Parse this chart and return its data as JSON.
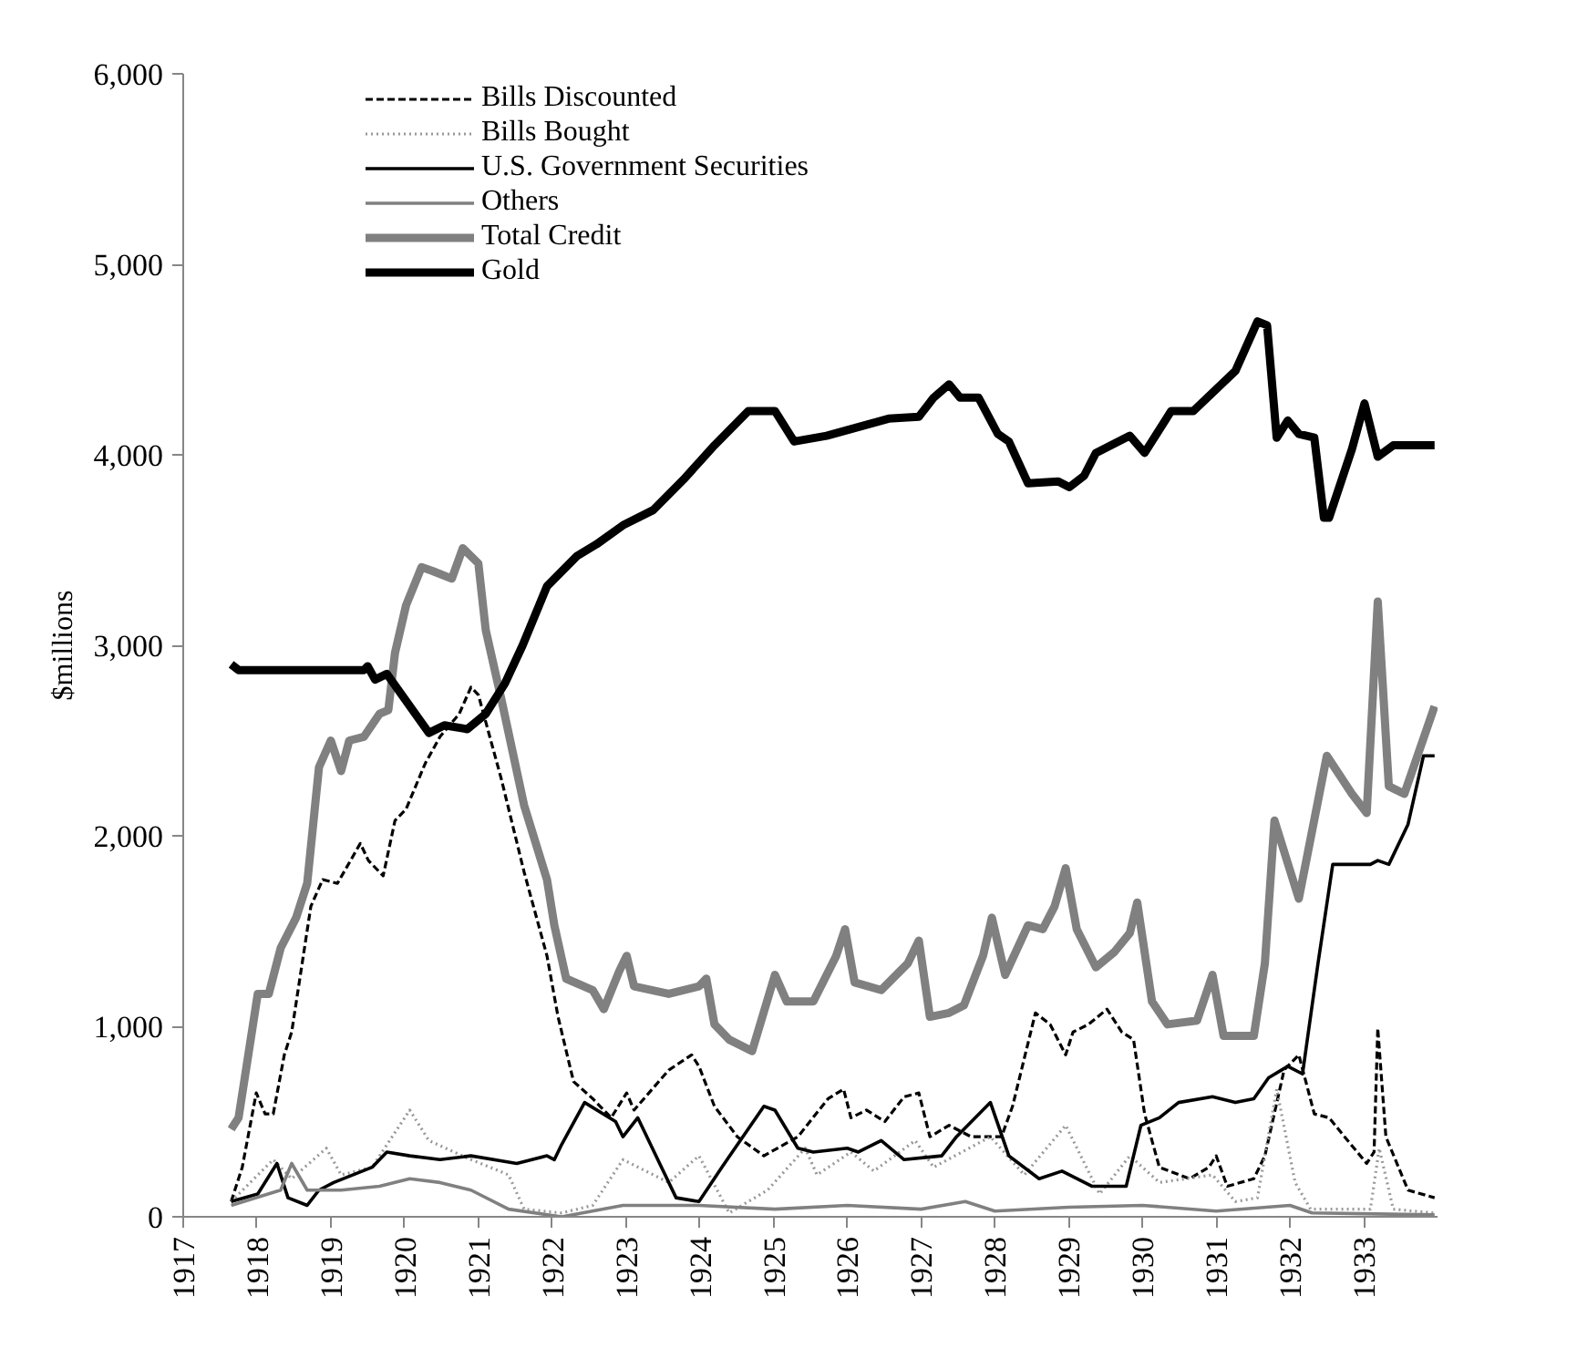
{
  "chart_data": {
    "type": "line",
    "ylabel": "$millions",
    "xlim": [
      1917,
      1934
    ],
    "xticks": [
      1917,
      1918,
      1919,
      1920,
      1921,
      1922,
      1923,
      1924,
      1925,
      1926,
      1927,
      1928,
      1929,
      1930,
      1931,
      1932,
      1933
    ],
    "ylim": [
      0,
      6000
    ],
    "yticks": [
      0,
      {
        "value": 1000,
        "label": "1,000"
      },
      {
        "value": 2000,
        "label": "2,000"
      },
      {
        "value": 3000,
        "label": "3,000"
      },
      {
        "value": 4000,
        "label": "4,000"
      },
      {
        "value": 5000,
        "label": "5,000"
      },
      {
        "value": 6000,
        "label": "6,000"
      }
    ],
    "grid": false,
    "legend": "top left",
    "marker": "none",
    "series": [
      {
        "name": "Bills Discounted",
        "color": "#000000",
        "line_style": "dashed",
        "x": [
          1917.65,
          1917.8,
          1917.99,
          1918.11,
          1918.22,
          1918.37,
          1918.47,
          1918.73,
          1918.89,
          1919.09,
          1919.4,
          1919.51,
          1919.71,
          1919.87,
          1920.02,
          1920.28,
          1920.48,
          1920.74,
          1920.9,
          1921.0,
          1921.31,
          1921.62,
          1921.93,
          1922.08,
          1922.29,
          1922.55,
          1922.8,
          1923.01,
          1923.11,
          1923.58,
          1923.89,
          1923.99,
          1924.2,
          1924.51,
          1924.87,
          1925.33,
          1925.74,
          1925.95,
          1926.05,
          1926.26,
          1926.51,
          1926.77,
          1926.97,
          1927.12,
          1927.38,
          1927.68,
          1928.09,
          1928.24,
          1928.55,
          1928.75,
          1928.96,
          1929.06,
          1929.27,
          1929.52,
          1929.72,
          1929.88,
          1930.03,
          1930.23,
          1930.64,
          1930.9,
          1931.0,
          1931.15,
          1931.51,
          1931.66,
          1931.92,
          1932.12,
          1932.33,
          1932.53,
          1932.74,
          1933.04,
          1933.14,
          1933.19,
          1933.3,
          1933.6,
          1933.96
        ],
        "values": [
          80,
          260,
          650,
          540,
          540,
          850,
          970,
          1630,
          1770,
          1750,
          1960,
          1870,
          1790,
          2080,
          2140,
          2380,
          2520,
          2640,
          2780,
          2740,
          2300,
          1810,
          1370,
          1050,
          710,
          620,
          520,
          650,
          560,
          770,
          850,
          790,
          580,
          420,
          320,
          420,
          620,
          670,
          520,
          560,
          500,
          630,
          650,
          420,
          480,
          420,
          420,
          580,
          1070,
          1010,
          850,
          970,
          1010,
          1090,
          970,
          930,
          540,
          260,
          200,
          260,
          320,
          160,
          200,
          320,
          770,
          850,
          540,
          520,
          420,
          280,
          340,
          990,
          420,
          140,
          100
        ]
      },
      {
        "name": "Bills Bought",
        "color": "#999999",
        "line_style": "dotted",
        "x": [
          1917.65,
          1918.22,
          1918.47,
          1918.94,
          1919.14,
          1919.56,
          1920.07,
          1920.33,
          1920.9,
          1921.41,
          1921.62,
          1922.13,
          1922.55,
          1922.96,
          1923.58,
          1923.99,
          1924.4,
          1924.92,
          1925.43,
          1925.59,
          1926.05,
          1926.36,
          1926.92,
          1927.17,
          1927.94,
          1928.4,
          1928.96,
          1929.42,
          1929.83,
          1930.23,
          1930.95,
          1931.26,
          1931.56,
          1931.82,
          1932.07,
          1932.28,
          1933.09,
          1933.21,
          1933.4,
          1933.96
        ],
        "values": [
          80,
          300,
          200,
          360,
          220,
          260,
          560,
          400,
          300,
          220,
          40,
          20,
          60,
          300,
          180,
          320,
          20,
          140,
          360,
          220,
          340,
          240,
          400,
          260,
          420,
          220,
          480,
          120,
          320,
          180,
          220,
          80,
          100,
          670,
          180,
          40,
          40,
          360,
          40,
          20
        ]
      },
      {
        "name": "U.S. Government Securities",
        "color": "#000000",
        "line_style": "solid",
        "x": [
          1917.65,
          1918.01,
          1918.27,
          1918.42,
          1918.68,
          1918.84,
          1919.04,
          1919.56,
          1919.76,
          1920.07,
          1920.48,
          1920.9,
          1921.52,
          1921.93,
          1922.03,
          1922.13,
          1922.44,
          1922.86,
          1922.96,
          1923.16,
          1923.68,
          1923.99,
          1924.3,
          1924.87,
          1925.02,
          1925.33,
          1925.54,
          1926.0,
          1926.15,
          1926.46,
          1926.77,
          1927.28,
          1927.48,
          1927.94,
          1928.19,
          1928.6,
          1928.91,
          1929.32,
          1929.78,
          1929.98,
          1930.23,
          1930.49,
          1930.95,
          1931.26,
          1931.51,
          1931.71,
          1931.97,
          1932.17,
          1932.38,
          1932.58,
          1933.09,
          1933.19,
          1933.34,
          1933.6,
          1933.81,
          1933.96
        ],
        "values": [
          80,
          120,
          280,
          100,
          60,
          140,
          180,
          260,
          340,
          320,
          300,
          320,
          280,
          320,
          300,
          380,
          600,
          500,
          420,
          520,
          100,
          80,
          260,
          580,
          560,
          360,
          340,
          360,
          340,
          400,
          300,
          320,
          420,
          600,
          320,
          200,
          240,
          160,
          160,
          480,
          520,
          600,
          630,
          600,
          620,
          730,
          790,
          750,
          1330,
          1850,
          1850,
          1870,
          1850,
          2060,
          2420,
          2420
        ]
      },
      {
        "name": "Others",
        "color": "#808080",
        "line_style": "solid",
        "x": [
          1917.65,
          1918.32,
          1918.47,
          1918.68,
          1919.14,
          1919.66,
          1920.07,
          1920.48,
          1920.9,
          1921.41,
          1922.13,
          1922.96,
          1923.99,
          1925.02,
          1926.0,
          1927.0,
          1927.6,
          1928.0,
          1929.0,
          1930.0,
          1931.0,
          1932.0,
          1932.3,
          1933.96
        ],
        "values": [
          60,
          140,
          280,
          140,
          140,
          160,
          200,
          180,
          140,
          40,
          0,
          60,
          60,
          40,
          60,
          40,
          80,
          30,
          50,
          60,
          30,
          60,
          20,
          10
        ]
      },
      {
        "name": "Total Credit",
        "color": "#808080",
        "line_style": "solid",
        "x": [
          1917.65,
          1917.75,
          1918.01,
          1918.16,
          1918.32,
          1918.53,
          1918.68,
          1918.84,
          1919.0,
          1919.14,
          1919.25,
          1919.45,
          1919.66,
          1919.78,
          1919.87,
          1920.02,
          1920.23,
          1920.38,
          1920.64,
          1920.79,
          1921.0,
          1921.1,
          1921.31,
          1921.62,
          1921.93,
          1922.03,
          1922.19,
          1922.55,
          1922.7,
          1922.91,
          1923.01,
          1923.11,
          1923.58,
          1923.99,
          1924.09,
          1924.2,
          1924.4,
          1924.71,
          1925.02,
          1925.18,
          1925.54,
          1925.85,
          1925.97,
          1926.1,
          1926.46,
          1926.82,
          1926.97,
          1927.12,
          1927.38,
          1927.58,
          1927.84,
          1927.96,
          1928.14,
          1928.45,
          1928.65,
          1928.81,
          1928.96,
          1929.11,
          1929.37,
          1929.62,
          1929.83,
          1929.93,
          1930.13,
          1930.34,
          1930.74,
          1930.95,
          1931.1,
          1931.51,
          1931.66,
          1931.79,
          1932.12,
          1932.5,
          1932.84,
          1933.04,
          1933.19,
          1933.34,
          1933.55,
          1933.96
        ],
        "values": [
          460,
          520,
          1170,
          1170,
          1410,
          1570,
          1750,
          2360,
          2500,
          2340,
          2500,
          2520,
          2640,
          2660,
          2960,
          3210,
          3410,
          3390,
          3350,
          3510,
          3430,
          3080,
          2720,
          2160,
          1770,
          1530,
          1250,
          1190,
          1090,
          1290,
          1370,
          1210,
          1170,
          1210,
          1250,
          1010,
          930,
          870,
          1270,
          1130,
          1130,
          1370,
          1510,
          1230,
          1190,
          1330,
          1450,
          1050,
          1070,
          1110,
          1370,
          1570,
          1270,
          1530,
          1510,
          1630,
          1830,
          1510,
          1310,
          1390,
          1490,
          1650,
          1130,
          1010,
          1030,
          1270,
          950,
          950,
          1330,
          2080,
          1670,
          2420,
          2220,
          2120,
          3230,
          2260,
          2220,
          2680
        ]
      },
      {
        "name": "Gold",
        "color": "#000000",
        "line_style": "solid",
        "x": [
          1917.65,
          1917.75,
          1919.45,
          1919.5,
          1919.6,
          1919.76,
          1920.33,
          1920.54,
          1920.85,
          1921.1,
          1921.36,
          1921.6,
          1921.93,
          1922.34,
          1922.6,
          1922.96,
          1923.37,
          1923.78,
          1924.2,
          1924.66,
          1925.02,
          1925.28,
          1925.72,
          1926.0,
          1926.56,
          1926.97,
          1927.17,
          1927.38,
          1927.53,
          1927.78,
          1928.04,
          1928.19,
          1928.45,
          1928.86,
          1929.01,
          1929.21,
          1929.37,
          1929.83,
          1930.03,
          1930.39,
          1930.69,
          1931.26,
          1931.56,
          1931.69,
          1931.82,
          1931.97,
          1932.12,
          1932.33,
          1932.46,
          1932.53,
          1932.84,
          1933.01,
          1933.19,
          1933.4,
          1933.96
        ],
        "values": [
          2900,
          2870,
          2870,
          2890,
          2820,
          2850,
          2540,
          2580,
          2560,
          2640,
          2800,
          3000,
          3310,
          3470,
          3530,
          3630,
          3710,
          3870,
          4050,
          4230,
          4230,
          4070,
          4100,
          4130,
          4190,
          4200,
          4300,
          4370,
          4300,
          4300,
          4110,
          4070,
          3850,
          3860,
          3830,
          3890,
          4010,
          4100,
          4010,
          4230,
          4230,
          4440,
          4700,
          4680,
          4090,
          4180,
          4110,
          4090,
          3670,
          3670,
          4030,
          4270,
          3990,
          4050,
          4050
        ]
      }
    ]
  }
}
